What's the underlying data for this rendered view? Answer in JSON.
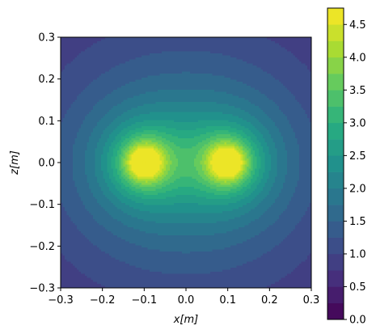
{
  "chart_data": {
    "type": "heatmap",
    "subtype": "filled-contour",
    "xlabel": "x[m]",
    "ylabel": "z[m]",
    "xlim": [
      -0.3,
      0.3
    ],
    "ylim": [
      -0.3,
      0.3
    ],
    "x_ticks": [
      "−0.3",
      "−0.2",
      "−0.1",
      "0.0",
      "0.1",
      "0.2",
      "0.3"
    ],
    "y_ticks": [
      "−0.3",
      "−0.2",
      "−0.1",
      "0.0",
      "0.1",
      "0.2",
      "0.3"
    ],
    "sources": [
      {
        "x": -0.1,
        "z": 0.0
      },
      {
        "x": 0.1,
        "z": 0.0
      }
    ],
    "colorbar": {
      "colormap": "viridis",
      "min": 0.0,
      "max": 4.75,
      "levels": [
        0.0,
        0.25,
        0.5,
        0.75,
        1.0,
        1.25,
        1.5,
        1.75,
        2.0,
        2.25,
        2.5,
        2.75,
        3.0,
        3.25,
        3.5,
        3.75,
        4.0,
        4.25,
        4.5,
        4.75
      ],
      "tick_labels": [
        "0.0",
        "0.5",
        "1.0",
        "1.5",
        "2.0",
        "2.5",
        "3.0",
        "3.5",
        "4.0",
        "4.5"
      ]
    },
    "grid": false
  }
}
